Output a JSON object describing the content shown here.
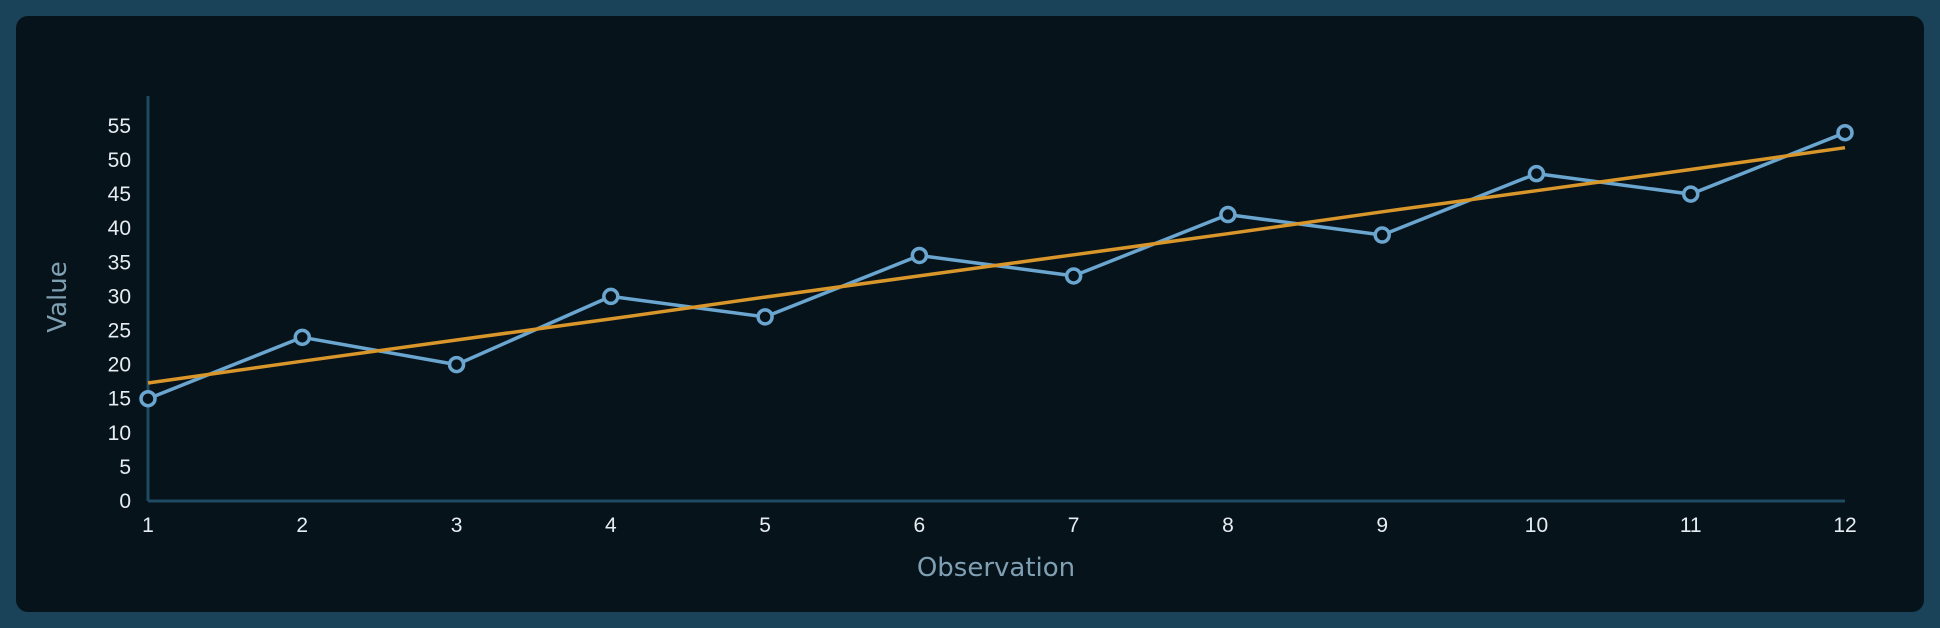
{
  "chart_data": {
    "type": "line",
    "title": "",
    "xlabel": "Observation",
    "ylabel": "Value",
    "x": [
      1,
      2,
      3,
      4,
      5,
      6,
      7,
      8,
      9,
      10,
      11,
      12
    ],
    "xlim": [
      1,
      12
    ],
    "ylim": [
      0,
      60
    ],
    "yticks": [
      0,
      5,
      10,
      15,
      20,
      25,
      30,
      35,
      40,
      45,
      50,
      55
    ],
    "grid": false,
    "series": [
      {
        "values": [
          15,
          24,
          20,
          30,
          27,
          36,
          33,
          42,
          39,
          48,
          45,
          54
        ],
        "color": "#6aa6cf",
        "markers": "hollow-circle"
      },
      {
        "values": [
          17.3,
          20.5,
          23.6,
          26.7,
          29.9,
          33.0,
          36.1,
          39.2,
          42.4,
          45.5,
          48.6,
          51.8
        ],
        "color": "#d9962a",
        "markers": "none"
      }
    ],
    "axis_color": "#1e4a62"
  }
}
